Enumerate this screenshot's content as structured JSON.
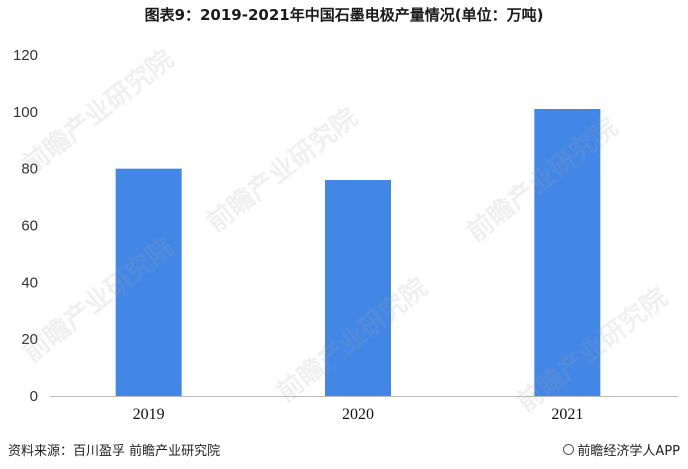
{
  "chart_data": {
    "type": "bar",
    "title": "图表9：2019-2021年中国石墨电极产量情况(单位：万吨)",
    "categories": [
      "2019",
      "2020",
      "2021"
    ],
    "values": [
      80,
      76,
      101
    ],
    "ylim": [
      0,
      120
    ],
    "yticks": [
      0,
      20,
      40,
      60,
      80,
      100,
      120
    ],
    "xlabel": "",
    "ylabel": "",
    "grid": false,
    "bar_color": "#4387e6"
  },
  "footer": {
    "source": "资料来源：百川盈孚 前瞻产业研究院",
    "brand": "前瞻经济学人APP"
  },
  "watermark": {
    "text": "前瞻产业研究院"
  }
}
